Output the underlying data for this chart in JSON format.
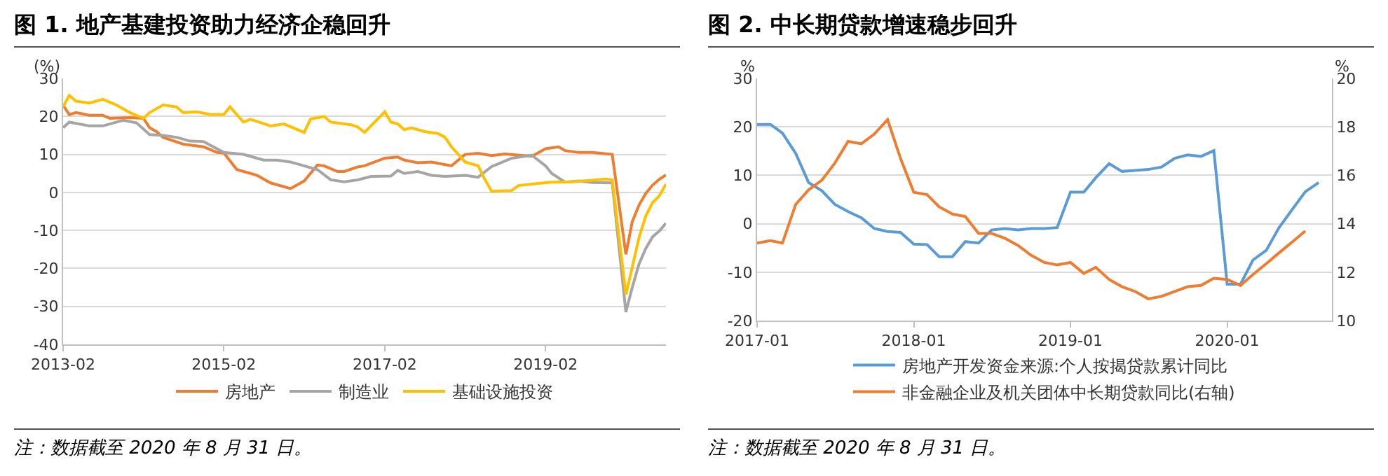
{
  "chart_data": [
    {
      "type": "line",
      "title": "图 1. 地产基建投资助力经济企稳回升",
      "ylabel": "(%)",
      "xlim": [
        "2013-02",
        "2020-08"
      ],
      "xticks": [
        {
          "value": "2013-02",
          "label": "2013-02"
        },
        {
          "value": "2015-02",
          "label": "2015-02"
        },
        {
          "value": "2017-02",
          "label": "2017-02"
        },
        {
          "value": "2019-02",
          "label": "2019-02"
        }
      ],
      "ylim": [
        -40,
        30
      ],
      "yticks": [
        -40,
        -30,
        -20,
        -10,
        0,
        10,
        20,
        30
      ],
      "grid": "y",
      "legend": "bottom",
      "annotations": [
        "注：数据截至 2020 年 8 月 31 日。"
      ],
      "series": [
        {
          "name": "房地产",
          "color": "#ed7d31",
          "x": [
            "2013-02",
            "2013-03",
            "2013-04",
            "2013-06",
            "2013-08",
            "2013-09",
            "2013-12",
            "2014-02",
            "2014-03",
            "2014-04",
            "2014-05",
            "2014-08",
            "2014-11",
            "2015-01",
            "2015-02",
            "2015-04",
            "2015-07",
            "2015-09",
            "2015-12",
            "2016-02",
            "2016-04",
            "2016-05",
            "2016-07",
            "2016-08",
            "2016-10",
            "2016-11",
            "2017-02",
            "2017-04",
            "2017-05",
            "2017-07",
            "2017-09",
            "2017-12",
            "2018-02",
            "2018-04",
            "2018-06",
            "2018-08",
            "2018-12",
            "2019-02",
            "2019-04",
            "2019-05",
            "2019-07",
            "2019-09",
            "2019-12",
            "2020-02",
            "2020-03",
            "2020-04",
            "2020-05",
            "2020-06",
            "2020-07",
            "2020-08"
          ],
          "values": [
            23,
            20.5,
            21,
            20.3,
            20.3,
            19.5,
            19.7,
            19.5,
            17,
            16,
            14.5,
            12.7,
            12,
            10.5,
            10.4,
            6,
            4.5,
            2.5,
            1,
            3,
            7.2,
            7,
            5.5,
            5.5,
            6.7,
            7,
            9,
            9.3,
            8.5,
            7.8,
            8,
            7,
            10,
            10.3,
            9.7,
            10.1,
            9.5,
            11.5,
            12,
            11,
            10.5,
            10.5,
            10,
            -16.3,
            -7.7,
            -3.3,
            -0.3,
            1.9,
            3.4,
            4.6
          ]
        },
        {
          "name": "制造业",
          "color": "#a5a5a5",
          "x": [
            "2013-02",
            "2013-03",
            "2013-06",
            "2013-08",
            "2013-11",
            "2014-01",
            "2014-03",
            "2014-05",
            "2014-07",
            "2014-09",
            "2014-11",
            "2015-02",
            "2015-05",
            "2015-08",
            "2015-10",
            "2015-12",
            "2016-04",
            "2016-06",
            "2016-08",
            "2016-10",
            "2016-12",
            "2017-03",
            "2017-04",
            "2017-05",
            "2017-07",
            "2017-09",
            "2017-11",
            "2018-02",
            "2018-04",
            "2018-06",
            "2018-07",
            "2018-09",
            "2018-12",
            "2019-02",
            "2019-03",
            "2019-05",
            "2019-07",
            "2019-09",
            "2019-12",
            "2020-02",
            "2020-03",
            "2020-04",
            "2020-05",
            "2020-06",
            "2020-07",
            "2020-08"
          ],
          "values": [
            17,
            18.5,
            17.5,
            17.5,
            19,
            18.3,
            15.2,
            15,
            14.5,
            13.5,
            13.4,
            10.5,
            10,
            8.5,
            8.5,
            8,
            6,
            3.3,
            2.8,
            3.3,
            4.2,
            4.3,
            5.8,
            5,
            5.5,
            4.5,
            4.2,
            4.5,
            4,
            6.8,
            7.5,
            9,
            9.8,
            7,
            5,
            2.7,
            3,
            2.6,
            2.5,
            -31.5,
            -25,
            -18.8,
            -14.8,
            -11.7,
            -10.2,
            -8.1
          ]
        },
        {
          "name": "基础设施投资",
          "color": "#ffc000",
          "x": [
            "2013-02",
            "2013-03",
            "2013-04",
            "2013-06",
            "2013-08",
            "2013-10",
            "2013-12",
            "2014-02",
            "2014-03",
            "2014-05",
            "2014-07",
            "2014-08",
            "2014-10",
            "2014-12",
            "2015-02",
            "2015-03",
            "2015-05",
            "2015-06",
            "2015-07",
            "2015-09",
            "2015-11",
            "2016-02",
            "2016-03",
            "2016-05",
            "2016-06",
            "2016-09",
            "2016-10",
            "2016-11",
            "2017-02",
            "2017-03",
            "2017-04",
            "2017-05",
            "2017-06",
            "2017-07",
            "2017-08",
            "2017-10",
            "2017-11",
            "2017-12",
            "2018-02",
            "2018-04",
            "2018-05",
            "2018-06",
            "2018-09",
            "2018-10",
            "2018-12",
            "2019-03",
            "2019-06",
            "2019-09",
            "2019-11",
            "2019-12",
            "2020-02",
            "2020-03",
            "2020-04",
            "2020-05",
            "2020-06",
            "2020-07",
            "2020-08"
          ],
          "values": [
            22.5,
            25.5,
            24,
            23.5,
            24.5,
            23,
            21,
            19.5,
            21,
            23,
            22.5,
            21,
            21.2,
            20.5,
            20.5,
            22.5,
            18.5,
            19.2,
            18.7,
            17.5,
            18,
            15.8,
            19.3,
            20,
            18.5,
            17.8,
            17.2,
            15.8,
            21.2,
            18.5,
            18,
            16.5,
            17,
            16.5,
            16,
            15.5,
            14.5,
            12,
            8,
            7,
            3.5,
            0.3,
            0.5,
            1.8,
            2.2,
            2.7,
            2.8,
            3.2,
            3.5,
            3.3,
            -26.9,
            -19.7,
            -11.8,
            -6.3,
            -2.7,
            -1,
            2.2
          ]
        }
      ]
    },
    {
      "type": "line",
      "title": "图 2. 中长期贷款增速稳步回升",
      "ylabel": "%",
      "y2label": "%",
      "xlim": [
        "2017-01",
        "2020-09"
      ],
      "xticks": [
        {
          "value": "2017-01",
          "label": "2017-01"
        },
        {
          "value": "2018-01",
          "label": "2018-01"
        },
        {
          "value": "2019-01",
          "label": "2019-01"
        },
        {
          "value": "2020-01",
          "label": "2020-01"
        }
      ],
      "ylim": [
        -20,
        30
      ],
      "yticks": [
        -20,
        -10,
        0,
        10,
        20,
        30
      ],
      "y2lim": [
        10,
        20
      ],
      "y2ticks": [
        10,
        12,
        14,
        16,
        18,
        20
      ],
      "grid": "y",
      "legend": "bottom",
      "annotations": [
        "注：数据截至 2020 年 8 月 31 日。"
      ],
      "x": [
        "2017-01",
        "2017-02",
        "2017-03",
        "2017-04",
        "2017-05",
        "2017-06",
        "2017-07",
        "2017-08",
        "2017-09",
        "2017-10",
        "2017-11",
        "2017-12",
        "2018-01",
        "2018-02",
        "2018-03",
        "2018-04",
        "2018-05",
        "2018-06",
        "2018-07",
        "2018-08",
        "2018-09",
        "2018-10",
        "2018-11",
        "2018-12",
        "2019-01",
        "2019-02",
        "2019-03",
        "2019-04",
        "2019-05",
        "2019-06",
        "2019-07",
        "2019-08",
        "2019-09",
        "2019-10",
        "2019-11",
        "2019-12",
        "2020-01",
        "2020-02",
        "2020-03",
        "2020-04",
        "2020-05",
        "2020-06",
        "2020-07",
        "2020-08"
      ],
      "series": [
        {
          "name": "房地产开发资金来源:个人按揭贷款累计同比",
          "color": "#5b9bd5",
          "values": [
            20.5,
            20.5,
            18.7,
            14.5,
            8.5,
            6.8,
            4,
            2.5,
            1.2,
            -1,
            -1.6,
            -1.8,
            -4.2,
            -4.3,
            -6.8,
            -6.8,
            -3.7,
            -4,
            -1.3,
            -1,
            -1.3,
            -1,
            -1,
            -0.8,
            6.5,
            6.5,
            9.5,
            12.4,
            10.8,
            11,
            11.2,
            11.7,
            13.5,
            14.2,
            13.9,
            15.1,
            -12.5,
            -12.5,
            -7.5,
            -5.5,
            -0.8,
            3,
            6.6,
            8.5
          ]
        },
        {
          "name": "非金融企业及机关团体中长期贷款同比(右轴)",
          "color": "#ed7d31",
          "axis": "y2",
          "values": [
            13.2,
            13.3,
            13.2,
            14.8,
            15.4,
            15.8,
            16.5,
            17.4,
            17.3,
            17.7,
            18.3,
            16.7,
            15.3,
            15.2,
            14.7,
            14.4,
            14.3,
            13.6,
            13.6,
            13.4,
            13.1,
            12.7,
            12.4,
            12.3,
            12.4,
            11.95,
            12.2,
            11.7,
            11.4,
            11.2,
            10.9,
            11,
            11.2,
            11.4,
            11.45,
            11.75,
            11.7,
            11.45,
            11.9,
            12.35,
            12.8,
            13.25,
            13.7,
            null
          ]
        }
      ]
    }
  ]
}
